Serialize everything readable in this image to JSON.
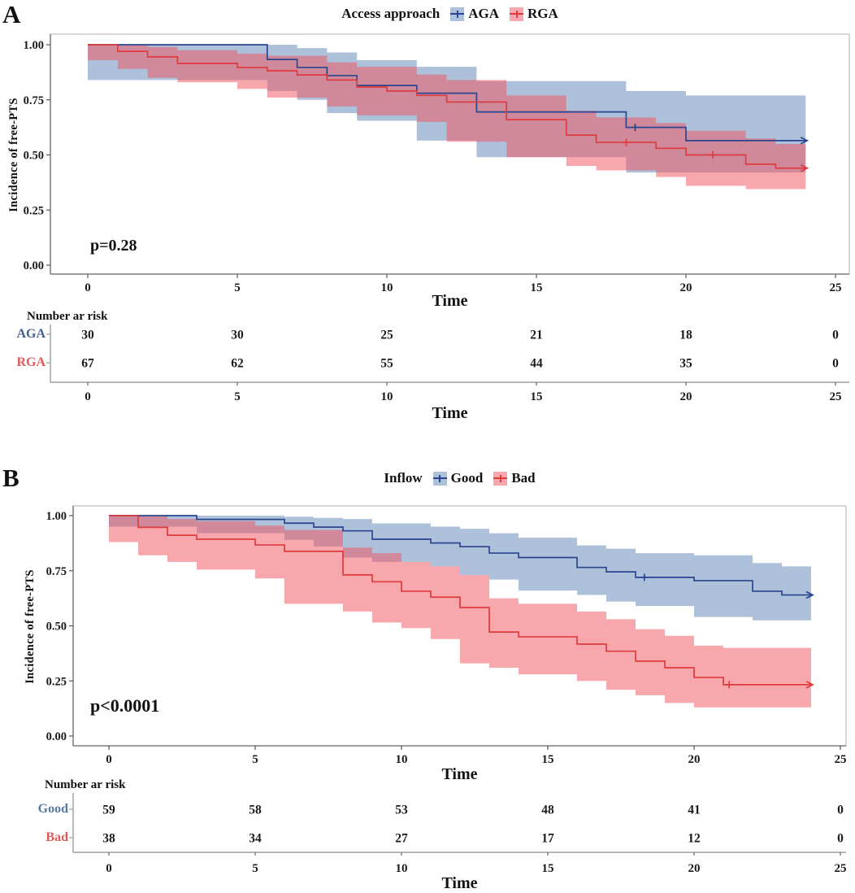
{
  "page": {
    "background": "#ffffff"
  },
  "chart_data": [
    {
      "type": "line",
      "subtype": "kaplan-meier-step",
      "panel_label": "A",
      "legend_title": "Access approach",
      "xlabel": "Time",
      "ylabel": "Incidence of free-PTS",
      "pvalue": "p=0.28",
      "xlim": [
        0,
        25
      ],
      "ylim": [
        0,
        1
      ],
      "xticks": [
        0,
        5,
        10,
        15,
        20,
        25
      ],
      "yticks": [
        {
          "v": 1.0,
          "label": "1.00"
        },
        {
          "v": 0.75,
          "label": "0.75"
        },
        {
          "v": 0.5,
          "label": "0.50"
        },
        {
          "v": 0.25,
          "label": "0.25"
        },
        {
          "v": 0.0,
          "label": "0.00"
        }
      ],
      "grid": false,
      "legend_position": "top",
      "series": [
        {
          "name": "AGA",
          "line_color": "#2b4590",
          "band_color": "rgba(91,132,184,0.50)",
          "steps": [
            [
              0,
              1.0
            ],
            [
              6,
              0.933
            ],
            [
              7,
              0.897
            ],
            [
              8,
              0.86
            ],
            [
              9,
              0.815
            ],
            [
              11,
              0.78
            ],
            [
              13,
              0.695
            ],
            [
              18,
              0.625
            ],
            [
              20,
              0.565
            ]
          ],
          "end_time": 24,
          "censors": [
            [
              18.3,
              0.625
            ]
          ],
          "band": [
            [
              0,
              1.0,
              1.0
            ],
            [
              6,
              0.84,
              1.0
            ],
            [
              7,
              0.79,
              0.985
            ],
            [
              8,
              0.75,
              0.965
            ],
            [
              9,
              0.69,
              0.93
            ],
            [
              11,
              0.655,
              0.9
            ],
            [
              13,
              0.565,
              0.835
            ],
            [
              18,
              0.49,
              0.79
            ],
            [
              20,
              0.42,
              0.77
            ]
          ]
        },
        {
          "name": "RGA",
          "line_color": "#de3b3e",
          "band_color": "rgba(241,81,89,0.50)",
          "steps": [
            [
              0,
              1.0
            ],
            [
              1,
              0.97
            ],
            [
              2,
              0.945
            ],
            [
              3,
              0.915
            ],
            [
              5,
              0.897
            ],
            [
              6,
              0.882
            ],
            [
              7,
              0.863
            ],
            [
              8,
              0.84
            ],
            [
              9,
              0.808
            ],
            [
              10,
              0.79
            ],
            [
              11,
              0.77
            ],
            [
              12,
              0.74
            ],
            [
              14,
              0.66
            ],
            [
              16,
              0.59
            ],
            [
              17,
              0.557
            ],
            [
              19,
              0.53
            ],
            [
              20,
              0.5
            ],
            [
              22,
              0.458
            ],
            [
              23,
              0.44
            ]
          ],
          "end_time": 24,
          "censors": [
            [
              18,
              0.557
            ],
            [
              20.9,
              0.5
            ]
          ],
          "band": [
            [
              0,
              1.0,
              1.0
            ],
            [
              1,
              0.93,
              1.0
            ],
            [
              2,
              0.89,
              0.99
            ],
            [
              3,
              0.85,
              0.975
            ],
            [
              5,
              0.83,
              0.96
            ],
            [
              6,
              0.8,
              0.95
            ],
            [
              8,
              0.76,
              0.92
            ],
            [
              9,
              0.72,
              0.9
            ],
            [
              11,
              0.68,
              0.865
            ],
            [
              12,
              0.65,
              0.84
            ],
            [
              14,
              0.56,
              0.77
            ],
            [
              16,
              0.49,
              0.7
            ],
            [
              17,
              0.45,
              0.67
            ],
            [
              19,
              0.43,
              0.645
            ],
            [
              20,
              0.4,
              0.61
            ],
            [
              22,
              0.36,
              0.575
            ],
            [
              23,
              0.345,
              0.55
            ]
          ]
        }
      ],
      "risk_table": {
        "title": "Number ar risk",
        "times": [
          0,
          5,
          10,
          15,
          20,
          25
        ],
        "rows": [
          {
            "name": "AGA",
            "color": "#44608e",
            "counts": [
              "30",
              "30",
              "25",
              "21",
              "18",
              "0"
            ]
          },
          {
            "name": "RGA",
            "color": "#e05a5c",
            "counts": [
              "67",
              "62",
              "55",
              "44",
              "35",
              "0"
            ]
          }
        ]
      }
    },
    {
      "type": "line",
      "subtype": "kaplan-meier-step",
      "panel_label": "B",
      "legend_title": "Inflow",
      "xlabel": "Time",
      "ylabel": "Incidence of free-PTS",
      "pvalue": "p<0.0001",
      "xlim": [
        0,
        25
      ],
      "ylim": [
        0,
        1
      ],
      "xticks": [
        0,
        5,
        10,
        15,
        20,
        25
      ],
      "yticks": [
        {
          "v": 1.0,
          "label": "1.00"
        },
        {
          "v": 0.75,
          "label": "0.75"
        },
        {
          "v": 0.5,
          "label": "0.50"
        },
        {
          "v": 0.25,
          "label": "0.25"
        },
        {
          "v": 0.0,
          "label": "0.00"
        }
      ],
      "grid": false,
      "legend_position": "top",
      "series": [
        {
          "name": "Good",
          "line_color": "#2b4590",
          "band_color": "rgba(91,132,184,0.50)",
          "steps": [
            [
              0,
              1.0
            ],
            [
              3,
              0.983
            ],
            [
              6,
              0.966
            ],
            [
              7,
              0.948
            ],
            [
              8,
              0.931
            ],
            [
              9,
              0.893
            ],
            [
              11,
              0.876
            ],
            [
              12,
              0.859
            ],
            [
              13,
              0.83
            ],
            [
              14,
              0.81
            ],
            [
              16,
              0.765
            ],
            [
              17,
              0.745
            ],
            [
              18,
              0.72
            ],
            [
              20,
              0.705
            ],
            [
              22,
              0.657
            ],
            [
              23,
              0.64
            ]
          ],
          "end_time": 24,
          "censors": [
            [
              18.3,
              0.72
            ]
          ],
          "band": [
            [
              0,
              1.0,
              1.0
            ],
            [
              3,
              0.95,
              1.0
            ],
            [
              6,
              0.92,
              0.995
            ],
            [
              7,
              0.89,
              0.99
            ],
            [
              8,
              0.86,
              0.985
            ],
            [
              9,
              0.81,
              0.965
            ],
            [
              11,
              0.79,
              0.95
            ],
            [
              12,
              0.77,
              0.94
            ],
            [
              13,
              0.73,
              0.92
            ],
            [
              14,
              0.71,
              0.9
            ],
            [
              16,
              0.66,
              0.865
            ],
            [
              17,
              0.64,
              0.85
            ],
            [
              18,
              0.61,
              0.83
            ],
            [
              20,
              0.59,
              0.82
            ],
            [
              22,
              0.54,
              0.785
            ],
            [
              23,
              0.525,
              0.77
            ]
          ]
        },
        {
          "name": "Bad",
          "line_color": "#de3b3e",
          "band_color": "rgba(241,81,89,0.50)",
          "steps": [
            [
              0,
              1.0
            ],
            [
              1,
              0.947
            ],
            [
              2,
              0.911
            ],
            [
              3,
              0.893
            ],
            [
              5,
              0.867
            ],
            [
              6,
              0.838
            ],
            [
              8,
              0.731
            ],
            [
              9,
              0.7
            ],
            [
              10,
              0.657
            ],
            [
              11,
              0.63
            ],
            [
              12,
              0.583
            ],
            [
              13,
              0.472
            ],
            [
              14,
              0.45
            ],
            [
              16,
              0.417
            ],
            [
              17,
              0.385
            ],
            [
              18,
              0.34
            ],
            [
              19,
              0.31
            ],
            [
              20,
              0.266
            ],
            [
              21,
              0.233
            ]
          ],
          "end_time": 24,
          "censors": [
            [
              21.2,
              0.233
            ]
          ],
          "band": [
            [
              0,
              1.0,
              1.0
            ],
            [
              1,
              0.88,
              1.0
            ],
            [
              2,
              0.82,
              0.985
            ],
            [
              3,
              0.79,
              0.975
            ],
            [
              5,
              0.755,
              0.955
            ],
            [
              6,
              0.715,
              0.935
            ],
            [
              8,
              0.6,
              0.855
            ],
            [
              9,
              0.565,
              0.83
            ],
            [
              10,
              0.515,
              0.79
            ],
            [
              11,
              0.49,
              0.77
            ],
            [
              12,
              0.44,
              0.73
            ],
            [
              13,
              0.33,
              0.625
            ],
            [
              14,
              0.31,
              0.6
            ],
            [
              16,
              0.28,
              0.565
            ],
            [
              17,
              0.25,
              0.53
            ],
            [
              18,
              0.21,
              0.485
            ],
            [
              19,
              0.185,
              0.455
            ],
            [
              20,
              0.15,
              0.41
            ],
            [
              21,
              0.13,
              0.4
            ]
          ]
        }
      ],
      "risk_table": {
        "title": "Number ar risk",
        "times": [
          0,
          5,
          10,
          15,
          20,
          25
        ],
        "rows": [
          {
            "name": "Good",
            "color": "#5878a0",
            "counts": [
              "59",
              "58",
              "53",
              "48",
              "41",
              "0"
            ]
          },
          {
            "name": "Bad",
            "color": "#e05a5c",
            "counts": [
              "38",
              "34",
              "27",
              "17",
              "12",
              "0"
            ]
          }
        ]
      }
    }
  ]
}
